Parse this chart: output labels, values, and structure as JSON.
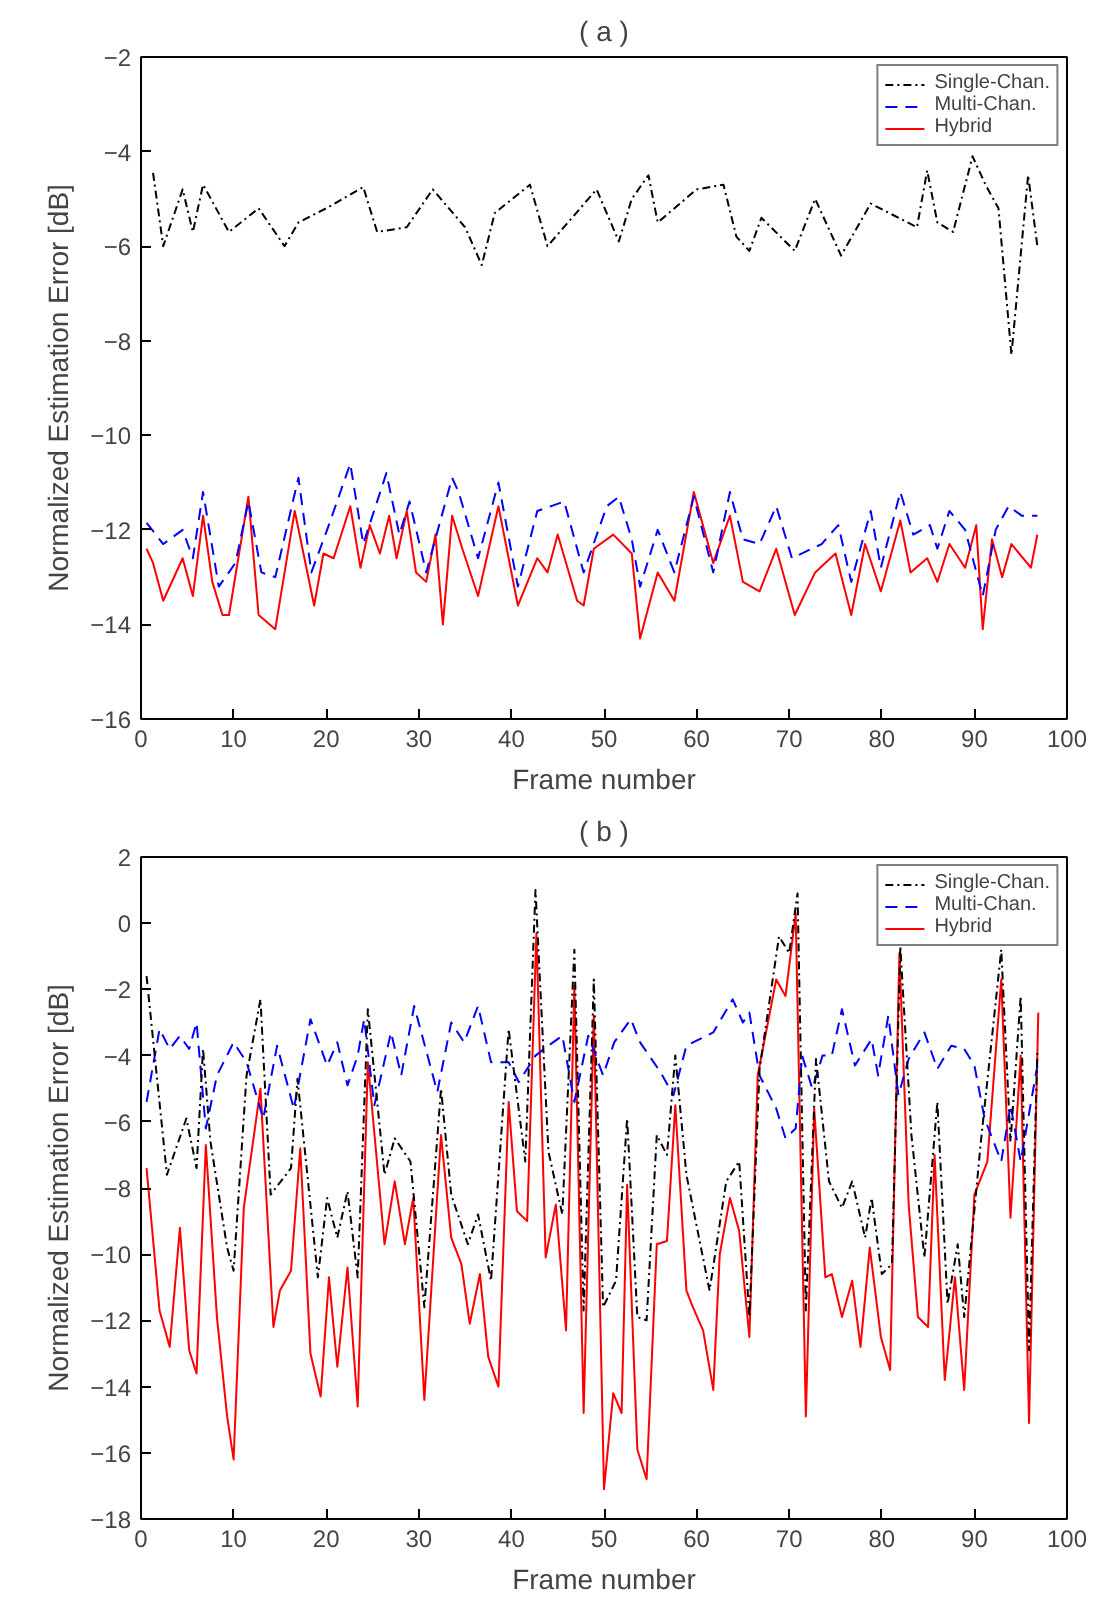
{
  "chart_data": [
    {
      "type": "line",
      "title": "( a )",
      "xlabel": "Frame number",
      "ylabel": "Normalized Estimation Error [dB]",
      "xlim": [
        0,
        100
      ],
      "xticks": [
        0,
        10,
        20,
        30,
        40,
        50,
        60,
        70,
        80,
        90,
        100
      ],
      "ylim": [
        -16,
        -2
      ],
      "yticks": [
        -16,
        -14,
        -12,
        -10,
        -8,
        -6,
        -4,
        -2
      ],
      "grid": false,
      "legend": "top right",
      "marker": "none",
      "series": [
        {
          "name": "Single-Chan.",
          "color": "#000000",
          "line_style": "dashdot",
          "x": [
            1.3,
            2.4,
            4.5,
            5.6,
            6.7,
            9.5,
            12.7,
            15.5,
            17,
            20,
            24,
            25.5,
            28.7,
            31.5,
            35,
            36.8,
            38.2,
            42,
            43.9,
            49.2,
            51.6,
            53,
            54.8,
            55.8,
            60,
            62.9,
            64.3,
            65.7,
            67,
            70.6,
            72.8,
            75.6,
            78.8,
            83.8,
            84.9,
            86,
            87.7,
            89.8,
            91.2,
            92.6,
            94,
            95.8,
            96.8
          ],
          "values": [
            -4.45,
            -6,
            -4.8,
            -5.7,
            -4.7,
            -5.7,
            -5.2,
            -6,
            -5.5,
            -5.2,
            -4.75,
            -5.7,
            -5.6,
            -4.8,
            -5.6,
            -6.4,
            -5.3,
            -4.7,
            -6,
            -4.8,
            -5.9,
            -5,
            -4.5,
            -5.5,
            -4.8,
            -4.7,
            -5.8,
            -6.1,
            -5.4,
            -6.1,
            -5,
            -6.2,
            -5.1,
            -5.6,
            -4.4,
            -5.5,
            -5.7,
            -4.1,
            -4.7,
            -5.2,
            -8.3,
            -4.5,
            -6
          ]
        },
        {
          "name": "Multi-Chan.",
          "color": "#0000ff",
          "line_style": "dashed",
          "x": [
            0.6,
            2.4,
            4.5,
            5.6,
            6.7,
            8.4,
            10.2,
            11.6,
            13,
            14.5,
            17,
            18.4,
            20.1,
            22.6,
            24,
            26.5,
            27.9,
            29,
            30.8,
            33.6,
            34.3,
            36.4,
            38.6,
            40.7,
            42.8,
            45.7,
            47.8,
            50.3,
            51.6,
            53,
            53.9,
            55.8,
            57.6,
            59.7,
            61.8,
            63.6,
            65,
            66.8,
            68.6,
            70.3,
            73.5,
            75.3,
            76.7,
            78.8,
            79.9,
            82,
            83.4,
            85.2,
            86,
            87.3,
            89,
            90.9,
            92.3,
            93.7,
            95.1,
            96.8
          ],
          "values": [
            -11.85,
            -12.3,
            -12,
            -12.6,
            -11.2,
            -13.2,
            -12.7,
            -11.4,
            -12.9,
            -13,
            -10.9,
            -12.9,
            -12,
            -10.6,
            -12.3,
            -10.8,
            -12.1,
            -11.4,
            -12.9,
            -10.9,
            -11.2,
            -12.6,
            -11,
            -13.2,
            -11.6,
            -11.4,
            -12.9,
            -11.5,
            -11.3,
            -12.2,
            -13.2,
            -12,
            -12.9,
            -11.3,
            -12.9,
            -11.2,
            -12.2,
            -12.3,
            -11.5,
            -12.6,
            -12.3,
            -11.9,
            -13.1,
            -11.6,
            -12.8,
            -11.2,
            -12.1,
            -11.9,
            -12.4,
            -11.6,
            -12,
            -13.4,
            -12,
            -11.5,
            -11.7,
            -11.7
          ]
        },
        {
          "name": "Hybrid",
          "color": "#ff0000",
          "line_style": "solid",
          "x": [
            0.6,
            1.3,
            2.4,
            4.5,
            5.6,
            6.7,
            7.7,
            8.8,
            9.5,
            11.6,
            12.7,
            14.5,
            16.6,
            18.7,
            19.7,
            20.8,
            22.6,
            23.7,
            24.7,
            25.8,
            26.8,
            27.6,
            28.7,
            29.7,
            30.8,
            31.8,
            32.6,
            33.6,
            34.7,
            36.4,
            38.6,
            40.7,
            42.8,
            43.9,
            45,
            47.1,
            47.8,
            48.9,
            51,
            53,
            53.9,
            55.8,
            57.6,
            59.7,
            61.8,
            63.6,
            65,
            66.8,
            68.6,
            70.6,
            72.8,
            75,
            76.7,
            78.2,
            79.9,
            82,
            83.1,
            84.9,
            86,
            87.3,
            89,
            90.2,
            90.9,
            91.9,
            93,
            94,
            96.1,
            96.8
          ],
          "values": [
            -12.4,
            -12.7,
            -13.5,
            -12.6,
            -13.4,
            -11.7,
            -13.1,
            -13.8,
            -13.8,
            -11.3,
            -13.8,
            -14.1,
            -11.6,
            -13.6,
            -12.5,
            -12.6,
            -11.5,
            -12.8,
            -11.9,
            -12.5,
            -11.7,
            -12.6,
            -11.6,
            -12.9,
            -13.1,
            -12.1,
            -14,
            -11.7,
            -12.4,
            -13.4,
            -11.5,
            -13.6,
            -12.6,
            -12.9,
            -12.1,
            -13.5,
            -13.6,
            -12.4,
            -12.1,
            -12.5,
            -14.3,
            -12.9,
            -13.5,
            -11.2,
            -12.7,
            -11.7,
            -13.1,
            -13.3,
            -12.4,
            -13.8,
            -12.9,
            -12.5,
            -13.8,
            -12.3,
            -13.3,
            -11.8,
            -12.9,
            -12.6,
            -13.1,
            -12.3,
            -12.8,
            -11.9,
            -14.1,
            -12.2,
            -13,
            -12.3,
            -12.8,
            -12.1
          ]
        }
      ]
    },
    {
      "type": "line",
      "title": "( b )",
      "xlabel": "Frame number",
      "ylabel": "Normalized Estimation Error [dB]",
      "xlim": [
        0,
        100
      ],
      "xticks": [
        0,
        10,
        20,
        30,
        40,
        50,
        60,
        70,
        80,
        90,
        100
      ],
      "ylim": [
        -18,
        2
      ],
      "yticks": [
        -18,
        -16,
        -14,
        -12,
        -10,
        -8,
        -6,
        -4,
        -2,
        0,
        2
      ],
      "grid": false,
      "legend": "top right",
      "marker": "none",
      "series": [
        {
          "name": "Single-Chan.",
          "color": "#000000",
          "line_style": "dashdot",
          "x": [
            0.6,
            2.8,
            4.9,
            6,
            6.7,
            7.5,
            9.3,
            10,
            11.4,
            12.9,
            14,
            16.2,
            16.9,
            19.1,
            20.1,
            21.2,
            22.3,
            23.4,
            24.5,
            26.3,
            27.4,
            29.1,
            30.6,
            32.4,
            33.5,
            35.3,
            36.4,
            37.8,
            39.7,
            41.5,
            42.6,
            44,
            45.5,
            46.8,
            47.8,
            48.9,
            49.9,
            51.3,
            52.5,
            53.6,
            54.6,
            55.7,
            56.8,
            57.7,
            58.9,
            61.4,
            63.2,
            64.6,
            65.7,
            66.8,
            68.9,
            70,
            70.9,
            71.8,
            72.9,
            74.3,
            75.7,
            76.8,
            78.2,
            78.9,
            80,
            81.1,
            82,
            83.2,
            84.6,
            86,
            87.1,
            88.2,
            88.9,
            90.7,
            92.9,
            93.9,
            95,
            95.9,
            96.8
          ],
          "values": [
            -1.6,
            -7.6,
            -5.9,
            -7.4,
            -3.8,
            -6.6,
            -9.8,
            -10.5,
            -4.6,
            -2.3,
            -8.2,
            -7.4,
            -4.7,
            -10.7,
            -8.3,
            -9.5,
            -8.1,
            -10.7,
            -2.6,
            -7.6,
            -6.5,
            -7.2,
            -11.6,
            -5,
            -8.2,
            -9.7,
            -8.8,
            -10.8,
            -3.2,
            -7.2,
            1,
            -6.9,
            -8.8,
            -0.8,
            -11.7,
            -1.7,
            -11.6,
            -10.8,
            -5.9,
            -11.9,
            -12,
            -6.4,
            -7,
            -4,
            -7.6,
            -11.1,
            -7.8,
            -7.2,
            -11.9,
            -4.4,
            -0.4,
            -0.9,
            0.9,
            -11.7,
            -4.1,
            -7.8,
            -8.6,
            -7.8,
            -9.5,
            -8.3,
            -10.6,
            -10.3,
            -0.7,
            -6.4,
            -10.1,
            -5.4,
            -11.5,
            -9.7,
            -11.9,
            -6.6,
            -0.8,
            -6.6,
            -2.2,
            -12.9,
            -3.9
          ]
        },
        {
          "name": "Multi-Chan.",
          "color": "#0000ff",
          "line_style": "dashed",
          "x": [
            0.6,
            2,
            3.1,
            4.2,
            5.2,
            6,
            7,
            8.2,
            10,
            11.4,
            13.2,
            14.7,
            16.5,
            18.3,
            20.1,
            21.2,
            22.3,
            23.4,
            24.1,
            25.2,
            27,
            28.1,
            29.5,
            32,
            33.5,
            34.9,
            36.4,
            37.8,
            39.7,
            40.8,
            42.6,
            44,
            45.5,
            46.8,
            48.3,
            49.9,
            51.1,
            52.9,
            53.9,
            56.1,
            57.5,
            58.9,
            61.8,
            63.9,
            65,
            65.7,
            66.8,
            68.6,
            69.6,
            70.7,
            71.4,
            72.5,
            73.6,
            74.6,
            75.7,
            77.1,
            78.9,
            79.6,
            80.7,
            81.8,
            82.9,
            84.6,
            86,
            87.5,
            88.9,
            90,
            91.1,
            92.9,
            93.9,
            95,
            96.8
          ],
          "values": [
            -5.4,
            -3.2,
            -3.8,
            -3.4,
            -3.8,
            -3,
            -6.2,
            -4.6,
            -3.6,
            -4.2,
            -5.9,
            -3.7,
            -5.6,
            -2.9,
            -4.3,
            -3.6,
            -4.9,
            -4,
            -2.9,
            -5.5,
            -3.3,
            -4.6,
            -2.5,
            -5.1,
            -3,
            -3.6,
            -2.5,
            -4.2,
            -4.2,
            -4.8,
            -4,
            -3.7,
            -3.4,
            -5.4,
            -3.4,
            -4.6,
            -3.6,
            -2.9,
            -3.6,
            -4.5,
            -5.2,
            -3.7,
            -3.3,
            -2.3,
            -3,
            -2.7,
            -4.6,
            -5.6,
            -6.5,
            -6.2,
            -4,
            -5,
            -4,
            -4,
            -2.6,
            -4.3,
            -3.5,
            -4.6,
            -2.8,
            -5.2,
            -4.1,
            -3.3,
            -4.4,
            -3.7,
            -3.8,
            -4.3,
            -5.9,
            -7.2,
            -5.5,
            -7.2,
            -4.3
          ]
        },
        {
          "name": "Hybrid",
          "color": "#ff0000",
          "line_style": "solid",
          "x": [
            0.6,
            2,
            3.1,
            4.2,
            5.2,
            6,
            7,
            8.2,
            9.3,
            10,
            11.1,
            12.9,
            14.3,
            15,
            16.2,
            17.2,
            18.3,
            19.4,
            20.3,
            21.2,
            22.3,
            23.4,
            24.5,
            26.3,
            27.4,
            28.5,
            29.4,
            30.6,
            32.4,
            33.5,
            34.6,
            35.5,
            36.6,
            37.5,
            38.6,
            39.7,
            40.6,
            41.7,
            42.7,
            43.7,
            44.8,
            45.9,
            46.8,
            47.8,
            48.9,
            50,
            51,
            51.9,
            52.5,
            53.6,
            54.6,
            55.7,
            56.8,
            57.7,
            58.9,
            59.6,
            60.7,
            61.8,
            62.5,
            63.6,
            64.6,
            65.7,
            66.6,
            68.6,
            69.6,
            70.7,
            71.8,
            72.7,
            73.9,
            74.6,
            75.7,
            76.8,
            77.7,
            78.7,
            79.9,
            80.9,
            81.9,
            82.9,
            83.9,
            85,
            85.7,
            86.8,
            87.9,
            88.9,
            90,
            91.4,
            92.9,
            93.9,
            95,
            95.9,
            96.9
          ],
          "values": [
            -7.4,
            -11.7,
            -12.8,
            -9.2,
            -12.9,
            -13.6,
            -6.7,
            -11.9,
            -14.9,
            -16.2,
            -8.6,
            -5,
            -12.2,
            -11.1,
            -10.5,
            -6.8,
            -13,
            -14.3,
            -10.7,
            -13.4,
            -10.4,
            -14.6,
            -4.2,
            -9.7,
            -7.8,
            -9.7,
            -8.3,
            -14.4,
            -6.4,
            -9.5,
            -10.3,
            -12.1,
            -10.6,
            -13.1,
            -14,
            -5.4,
            -8.7,
            -9,
            -0.3,
            -10.1,
            -8.5,
            -12.3,
            -1.9,
            -14.8,
            -2.8,
            -17.1,
            -14.2,
            -14.8,
            -7.9,
            -15.9,
            -16.8,
            -9.7,
            -9.6,
            -5.5,
            -11.1,
            -11.6,
            -12.3,
            -14.1,
            -10,
            -8.3,
            -9.3,
            -12.5,
            -4.6,
            -1.7,
            -2.2,
            0.3,
            -14.9,
            -5.6,
            -10.7,
            -10.6,
            -11.9,
            -10.8,
            -12.8,
            -9.8,
            -12.5,
            -13.5,
            -0.9,
            -8.5,
            -11.9,
            -12.2,
            -7,
            -13.8,
            -10.7,
            -14.1,
            -8.2,
            -7.2,
            -1.7,
            -8.9,
            -4,
            -15.1,
            -2.7
          ]
        }
      ]
    }
  ]
}
